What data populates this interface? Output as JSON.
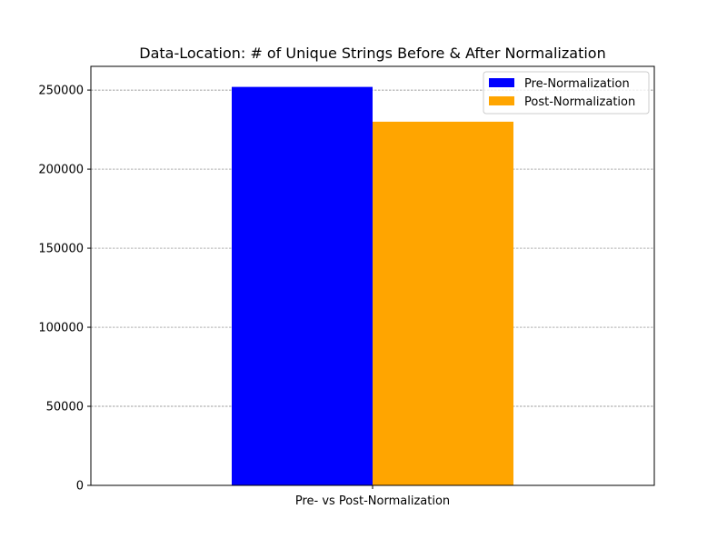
{
  "chart_data": {
    "type": "bar",
    "title": "Data-Location: # of Unique Strings Before & After Normalization",
    "xlabel": "",
    "ylabel": "",
    "categories": [
      "Pre- vs Post-Normalization"
    ],
    "series": [
      {
        "name": "Pre-Normalization",
        "values": [
          252000
        ],
        "color": "#0000ff"
      },
      {
        "name": "Post-Normalization",
        "values": [
          230000
        ],
        "color": "#ffa500"
      }
    ],
    "ylim": [
      0,
      265000
    ],
    "yticks": [
      0,
      50000,
      100000,
      150000,
      200000,
      250000
    ],
    "ytick_labels": [
      "0",
      "50000",
      "100000",
      "150000",
      "200000",
      "250000"
    ],
    "grid": "y-dashed",
    "legend_position": "top-right"
  }
}
